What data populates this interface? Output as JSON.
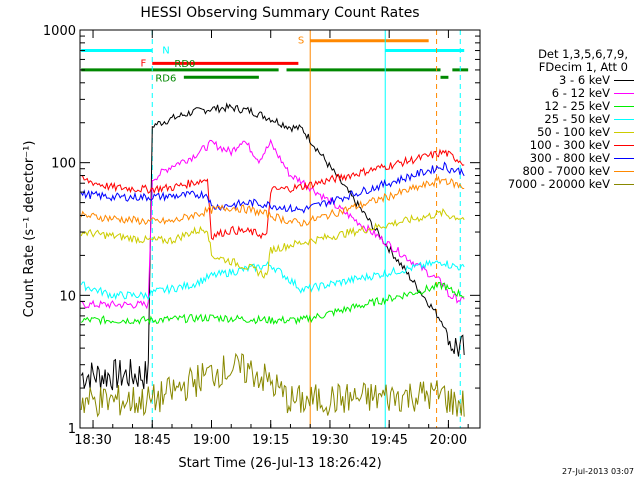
{
  "chart_data": {
    "type": "line",
    "title": "HESSI Observing Summary Count Rates",
    "xlabel": "Start Time (26-Jul-13 18:26:42)",
    "ylabel": "Count Rate (s⁻¹ detector⁻¹)",
    "y_scale": "log",
    "ylim": [
      1,
      1000
    ],
    "xlim": [
      "18:26:42",
      "20:08:00"
    ],
    "x_ticks": [
      "18:30",
      "18:45",
      "19:00",
      "19:15",
      "19:30",
      "19:45",
      "20:00"
    ],
    "y_ticks": [
      "1",
      "10",
      "100",
      "1000"
    ],
    "legend_header": [
      "Det 1,3,5,6,7,9,",
      "FDecim 1, Att 0"
    ],
    "legend_placement": "right",
    "series": [
      {
        "name": "3 - 6 keV",
        "color": "#000000",
        "x": [
          "18:27",
          "18:44",
          "18:45",
          "18:50",
          "18:55",
          "19:00",
          "19:05",
          "19:10",
          "19:15",
          "19:20",
          "19:23",
          "19:59",
          "20:00",
          "20:04"
        ],
        "y": [
          2.5,
          2.5,
          190,
          215,
          240,
          255,
          260,
          245,
          215,
          185,
          180,
          6,
          4.5,
          3.8
        ]
      },
      {
        "name": "6 - 12 keV",
        "color": "#ff00ff",
        "x": [
          "18:27",
          "18:44",
          "18:45",
          "18:50",
          "18:55",
          "19:00",
          "19:05",
          "19:08",
          "19:12",
          "19:15",
          "19:20",
          "19:23",
          "19:59",
          "20:00",
          "20:04"
        ],
        "y": [
          8.5,
          8.5,
          75,
          95,
          110,
          140,
          120,
          150,
          105,
          140,
          80,
          72,
          12,
          10,
          9
        ]
      },
      {
        "name": "12 - 25 keV",
        "color": "#00ee00",
        "x": [
          "18:27",
          "18:44",
          "18:45",
          "19:00",
          "19:15",
          "19:23",
          "19:59",
          "20:00",
          "20:04"
        ],
        "y": [
          6.5,
          6.5,
          6.5,
          6.8,
          6.5,
          6.5,
          12,
          11,
          10
        ]
      },
      {
        "name": "25 - 50 keV",
        "color": "#00ffff",
        "x": [
          "18:27",
          "18:35",
          "18:44",
          "18:45",
          "18:55",
          "19:00",
          "19:10",
          "19:15",
          "19:20",
          "19:23",
          "19:59",
          "20:00",
          "20:04"
        ],
        "y": [
          12,
          10,
          10,
          10.5,
          12,
          14,
          16,
          17,
          13,
          11,
          18,
          17,
          16
        ]
      },
      {
        "name": "50 - 100 keV",
        "color": "#cccc00",
        "x": [
          "18:27",
          "18:35",
          "18:44",
          "18:50",
          "18:55",
          "18:59",
          "19:00",
          "19:05",
          "19:10",
          "19:14",
          "19:15",
          "19:20",
          "19:23",
          "19:59",
          "20:00",
          "20:04"
        ],
        "y": [
          30,
          28,
          26,
          26,
          30,
          32,
          20,
          18,
          16,
          14,
          22,
          24,
          25,
          42,
          40,
          38
        ]
      },
      {
        "name": "100 - 300 keV",
        "color": "#ff0000",
        "x": [
          "18:27",
          "18:35",
          "18:44",
          "18:50",
          "18:59",
          "19:00",
          "19:05",
          "19:10",
          "19:14",
          "19:15",
          "19:20",
          "19:23",
          "19:59",
          "20:00",
          "20:04"
        ],
        "y": [
          75,
          65,
          63,
          65,
          75,
          28,
          31,
          30,
          28,
          62,
          64,
          66,
          120,
          115,
          100
        ]
      },
      {
        "name": "300 - 800 keV",
        "color": "#0000ff",
        "x": [
          "18:27",
          "18:35",
          "18:44",
          "18:50",
          "18:59",
          "19:00",
          "19:05",
          "19:10",
          "19:15",
          "19:20",
          "19:23",
          "19:59",
          "20:00",
          "20:04"
        ],
        "y": [
          58,
          55,
          55,
          56,
          58,
          46,
          48,
          50,
          48,
          45,
          44,
          95,
          90,
          85
        ]
      },
      {
        "name": "800 - 7000 keV",
        "color": "#ff8800",
        "x": [
          "18:27",
          "18:35",
          "18:44",
          "18:50",
          "18:55",
          "19:00",
          "19:05",
          "19:10",
          "19:15",
          "19:20",
          "19:23",
          "19:59",
          "20:00",
          "20:04"
        ],
        "y": [
          40,
          38,
          36,
          36,
          40,
          44,
          46,
          44,
          40,
          36,
          35,
          75,
          72,
          65
        ]
      },
      {
        "name": "7000 - 20000 keV",
        "color": "#888800",
        "x": [
          "18:27",
          "18:44",
          "18:45",
          "18:55",
          "19:00",
          "19:05",
          "19:10",
          "19:15",
          "19:20",
          "19:23",
          "19:59",
          "20:00",
          "20:04"
        ],
        "y": [
          1.6,
          1.6,
          1.6,
          2.2,
          2.6,
          2.8,
          2.7,
          2.2,
          1.6,
          1.6,
          1.8,
          1.6,
          1.5
        ]
      }
    ],
    "state_bars": [
      {
        "label": "N",
        "color": "#00ffff",
        "y": 700,
        "segments": [
          [
            "18:27",
            "18:45"
          ],
          [
            "19:44",
            "20:04"
          ]
        ]
      },
      {
        "label": "F",
        "color": "#ff0000",
        "y": 560,
        "segments": [
          [
            "18:45",
            "19:22"
          ]
        ]
      },
      {
        "label": "S",
        "color": "#ff8800",
        "y": 830,
        "segments": [
          [
            "19:25",
            "19:55"
          ]
        ]
      },
      {
        "label": "RD0",
        "color": "#008800",
        "y": 500,
        "segments": [
          [
            "18:27",
            "19:17"
          ],
          [
            "19:19",
            "19:58"
          ],
          [
            "20:01",
            "20:05"
          ]
        ]
      },
      {
        "label": "RD6",
        "color": "#008800",
        "y": 440,
        "segments": [
          [
            "18:53",
            "19:12"
          ],
          [
            "19:58",
            "20:00"
          ]
        ]
      }
    ],
    "vlines": [
      {
        "time": "18:45",
        "color": "#00ffff",
        "style": "dashed"
      },
      {
        "time": "19:25",
        "color": "#ff8800",
        "style": "solid"
      },
      {
        "time": "19:44",
        "color": "#00ffff",
        "style": "solid"
      },
      {
        "time": "19:57",
        "color": "#ff8800",
        "style": "dashed"
      },
      {
        "time": "20:03",
        "color": "#00ffff",
        "style": "dashed"
      }
    ]
  },
  "timestamp": "27-Jul-2013 03:07"
}
